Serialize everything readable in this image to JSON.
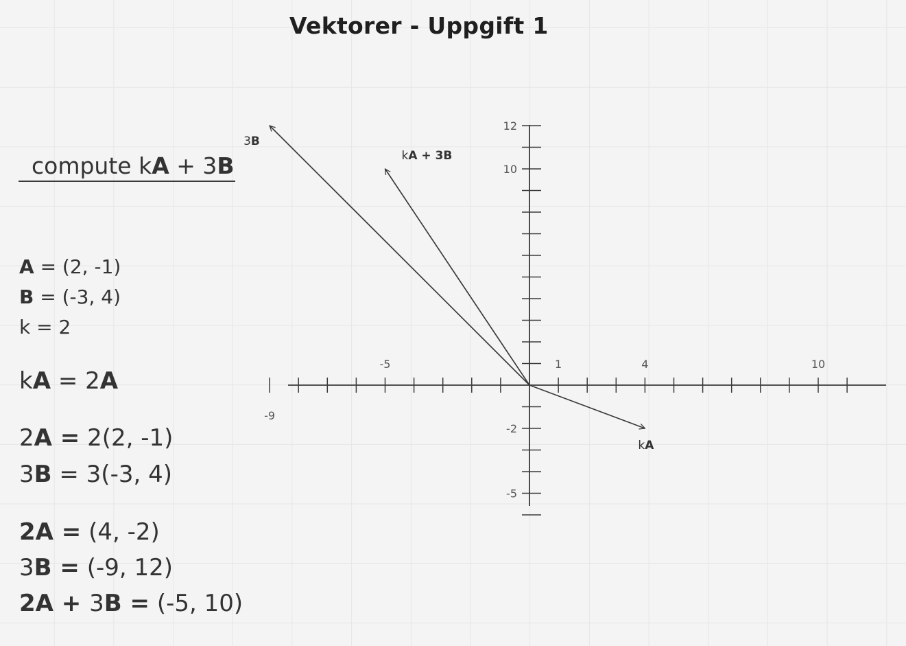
{
  "title": "Vektorer - Uppgift 1",
  "heading": {
    "p1": "compute k",
    "p2": "A",
    "p3": " + 3",
    "p4": "B"
  },
  "givens": {
    "a": {
      "sym": "A",
      "rest": " = (2, -1)"
    },
    "b": {
      "sym": "B",
      "rest": " = (-3, 4)"
    },
    "k": "k =  2"
  },
  "steps": {
    "s1": {
      "p1": "k",
      "p2": "A",
      "p3": " = 2",
      "p4": "A"
    },
    "s2": {
      "p1": "2",
      "p2": "A =",
      "p3": " 2(2, -1)"
    },
    "s3": {
      "p1": "3",
      "p2": "B",
      "p3": " = 3(-3, 4)"
    },
    "s4": {
      "p1": "2A =",
      "p2": " (4, -2)"
    },
    "s5": {
      "p1": "3",
      "p2": "B =",
      "p3": " (-9, 12)"
    },
    "s6": {
      "p1": "2A + ",
      "p2": "3",
      "p3": "B =",
      "p4": " (-5, 10)"
    }
  },
  "chart_data": {
    "type": "vector-diagram",
    "title": "Vektorer - Uppgift 1",
    "xlim": [
      -9,
      12.5
    ],
    "ylim": [
      -6,
      12
    ],
    "xticks": [
      -9,
      -8,
      -7,
      -6,
      -5,
      -4,
      -3,
      -2,
      -1,
      1,
      2,
      3,
      4,
      5,
      6,
      7,
      8,
      9,
      10,
      11
    ],
    "yticks": [
      -6,
      -5,
      -4,
      -3,
      -2,
      -1,
      1,
      2,
      3,
      4,
      5,
      6,
      7,
      8,
      9,
      10,
      11,
      12
    ],
    "xtick_labels": [
      {
        "value": -9,
        "text": "-9"
      },
      {
        "value": -5,
        "text": "-5"
      },
      {
        "value": 1,
        "text": "1"
      },
      {
        "value": 4,
        "text": "4"
      },
      {
        "value": 10,
        "text": "10"
      }
    ],
    "ytick_labels": [
      {
        "value": 12,
        "text": "12"
      },
      {
        "value": 10,
        "text": "10"
      },
      {
        "value": -2,
        "text": "-2"
      },
      {
        "value": -5,
        "text": "-5"
      }
    ],
    "vectors": [
      {
        "x": -9,
        "y": 12,
        "label_plain": "3",
        "label_bold": "B"
      },
      {
        "x": -5,
        "y": 10,
        "label_plain": "k",
        "label_bold": "A + 3B"
      },
      {
        "x": 4,
        "y": -2,
        "label_plain": "k",
        "label_bold": "A"
      }
    ],
    "color": "#3a3a3a"
  }
}
